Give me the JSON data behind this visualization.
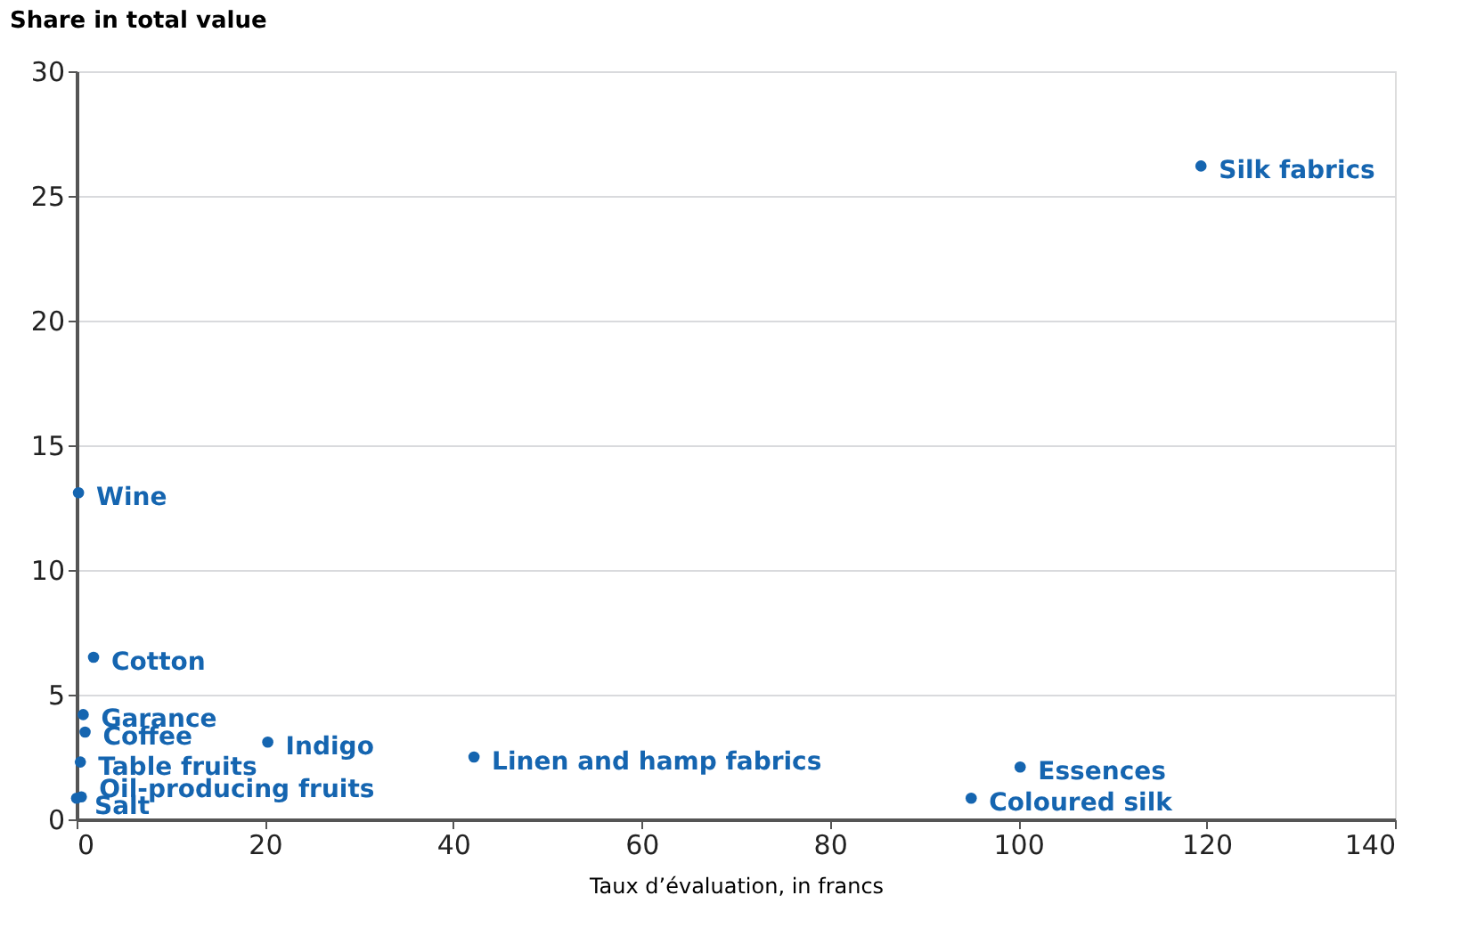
{
  "chart_data": {
    "type": "scatter",
    "xlabel": "Taux d’évaluation, in francs",
    "ylabel": "Share in total value",
    "xlim": [
      0,
      140
    ],
    "xticks": [
      0,
      20,
      40,
      60,
      80,
      100,
      120,
      140
    ],
    "ylim": [
      0,
      30
    ],
    "yticks": [
      0,
      5,
      10,
      15,
      20,
      25,
      30
    ],
    "grid": "y",
    "marker": "circle",
    "series": [
      {
        "color": "#1565b0",
        "x": [
          119.4,
          0.2,
          1.8,
          0.7,
          0.9,
          0.4,
          0.5,
          0,
          20.3,
          42.2,
          100.2,
          95
        ],
        "values": [
          26.2,
          13.1,
          6.5,
          4.2,
          3.5,
          2.3,
          0.9,
          0.85,
          3.1,
          2.5,
          2.1,
          0.85
        ]
      }
    ],
    "annotations": [
      {
        "text": "Silk fabrics",
        "x": 119.4,
        "y": 26.2
      },
      {
        "text": "Wine",
        "x": 0.2,
        "y": 13.1
      },
      {
        "text": "Cotton",
        "x": 1.8,
        "y": 6.5
      },
      {
        "text": "Garance",
        "x": 0.7,
        "y": 4.2
      },
      {
        "text": "Coffee",
        "x": 0.9,
        "y": 3.5
      },
      {
        "text": "Table fruits",
        "x": 0.4,
        "y": 2.3
      },
      {
        "text": "Oil-producing fruits",
        "x": 0.5,
        "y": 0.9
      },
      {
        "text": "Salt",
        "x": 0,
        "y": 0.85
      },
      {
        "text": "Indigo",
        "x": 20.3,
        "y": 3.1
      },
      {
        "text": "Linen and hamp fabrics",
        "x": 42.2,
        "y": 2.5
      },
      {
        "text": "Essences",
        "x": 100.2,
        "y": 2.1
      },
      {
        "text": "Coloured silk",
        "x": 95,
        "y": 0.85
      }
    ]
  }
}
